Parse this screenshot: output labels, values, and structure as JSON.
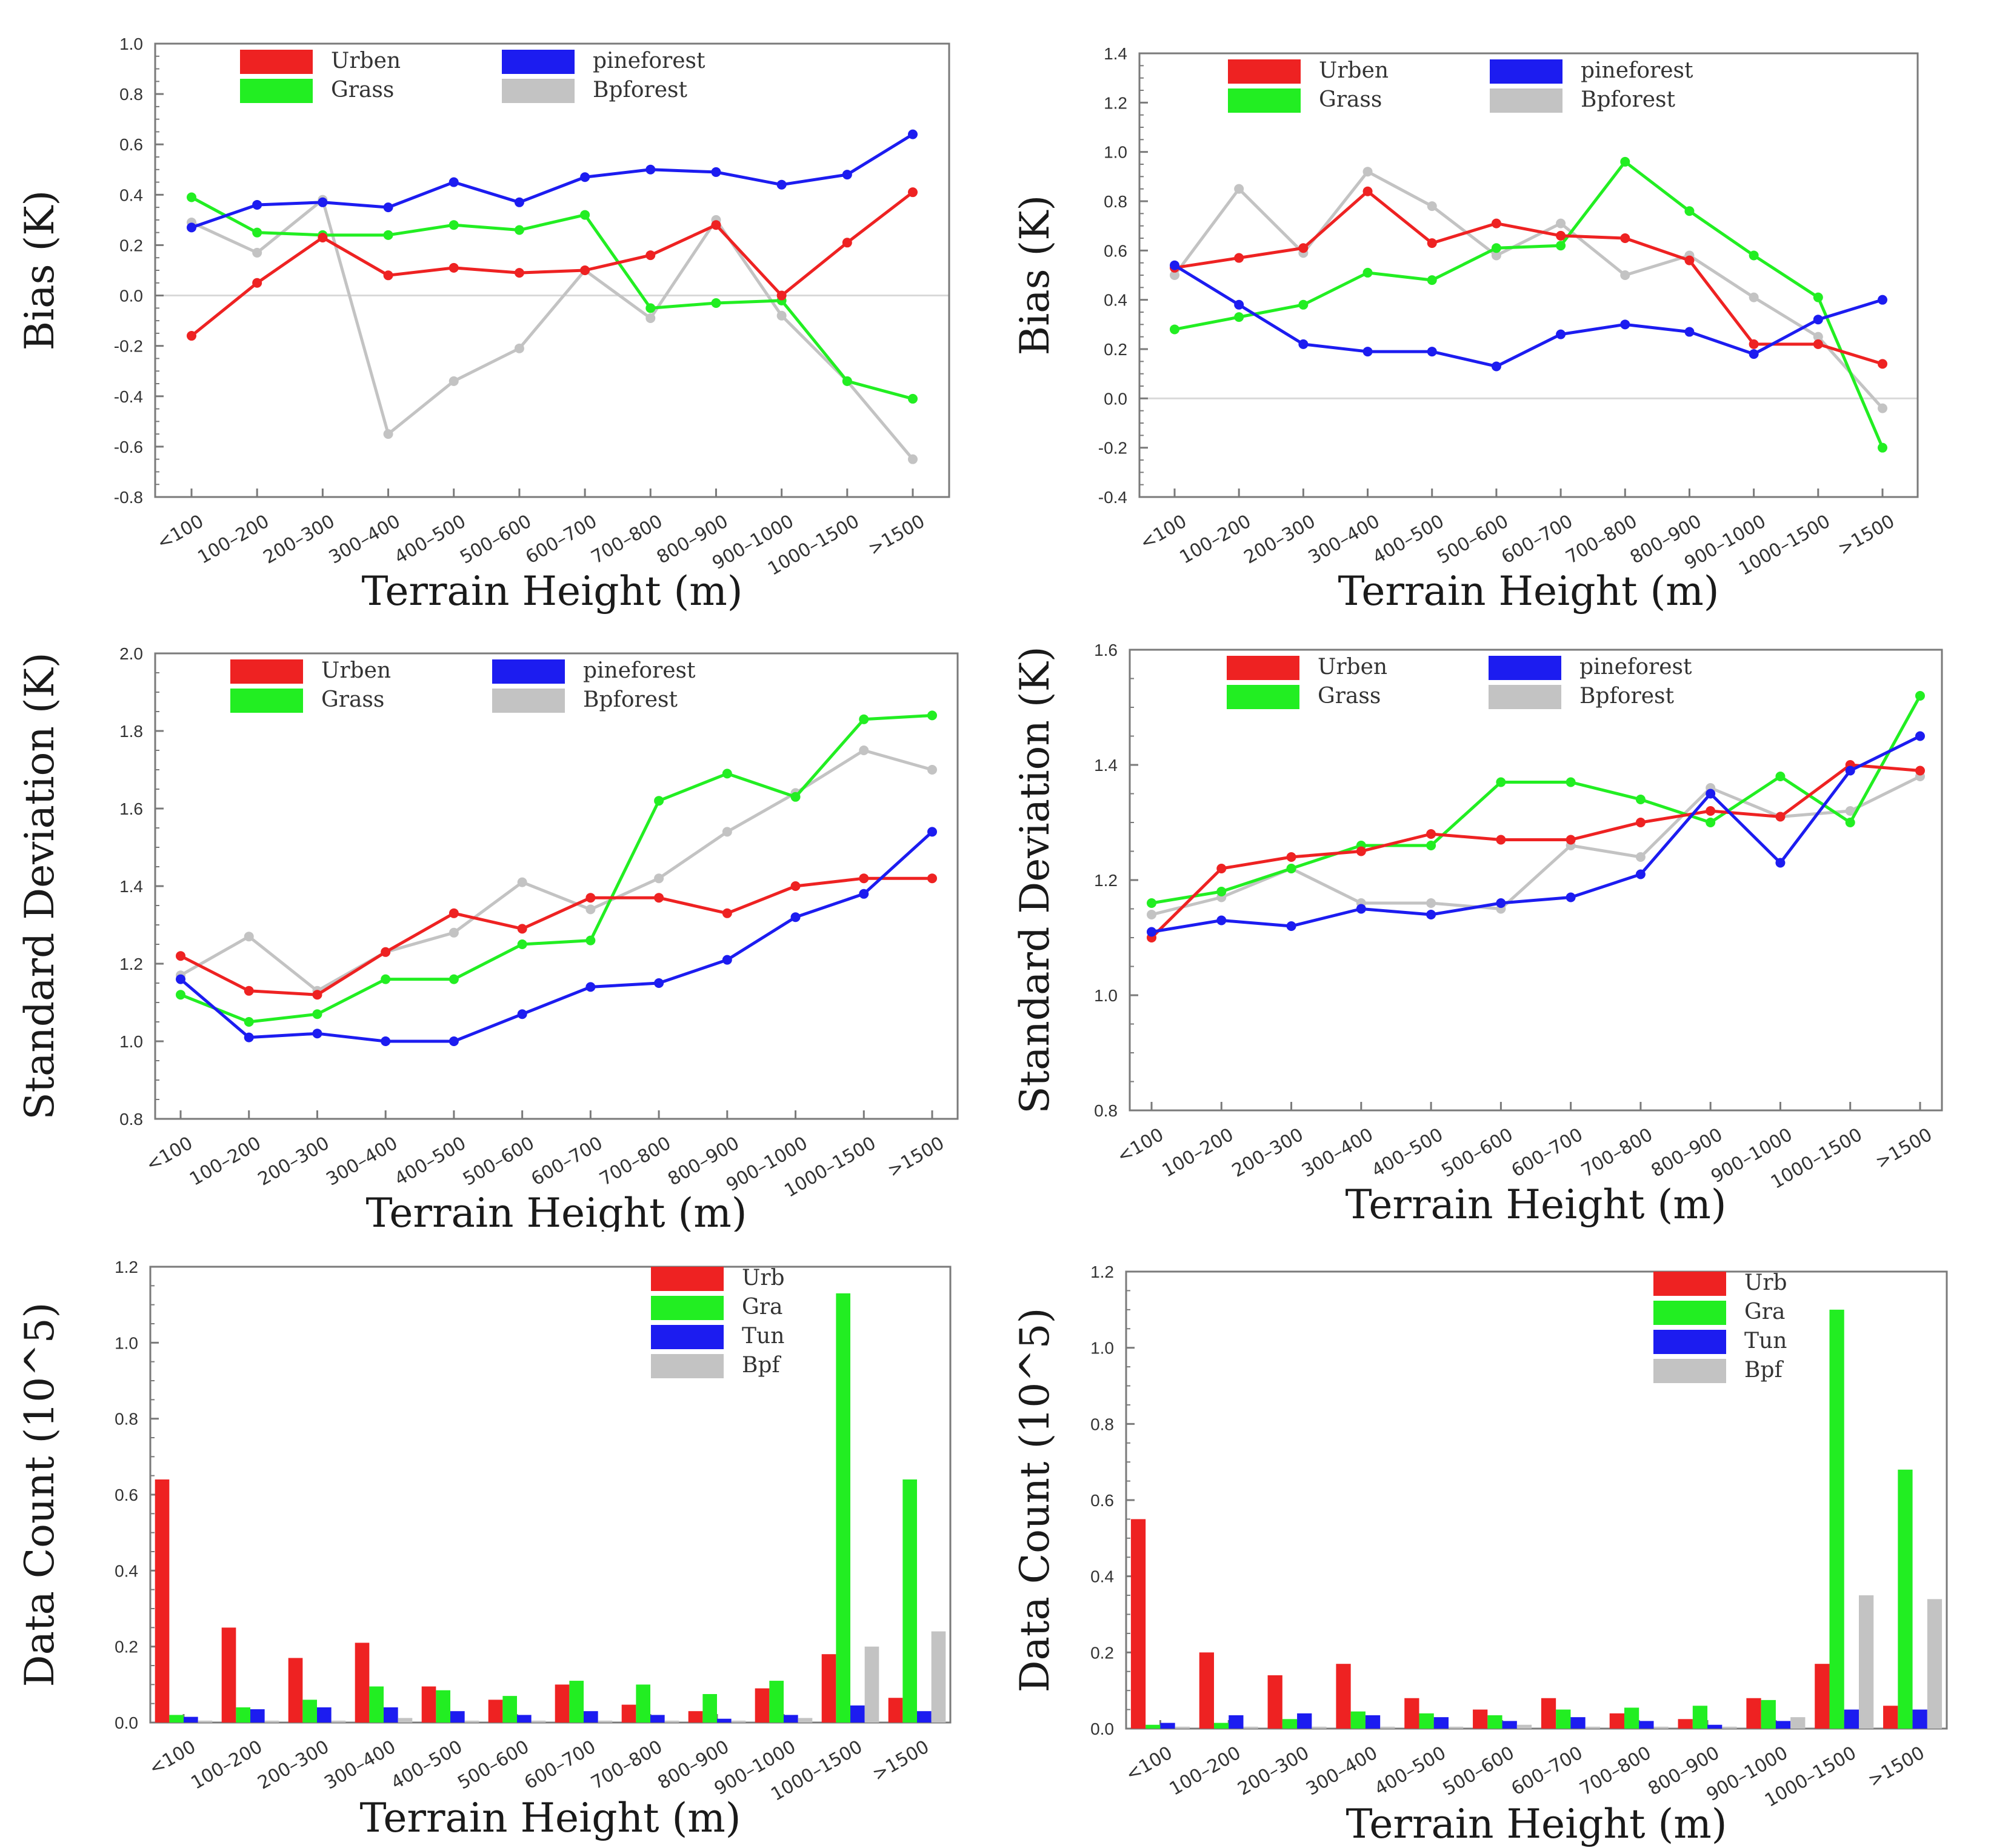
{
  "colors": {
    "red": "#ee2222",
    "green": "#22ee22",
    "blue": "#1c1cf0",
    "gray": "#c3c3c3",
    "frame": "#7a7a7a"
  },
  "chart_data": [
    {
      "id": "p1",
      "type": "line",
      "xlabel": "Terrain Height (m)",
      "ylabel": "Bias (K)",
      "ylim": [
        -0.8,
        1.0
      ],
      "yticks": [
        -0.8,
        -0.6,
        -0.4,
        -0.2,
        0.0,
        0.2,
        0.4,
        0.6,
        0.8,
        1.0
      ],
      "zeroline": true,
      "categories": [
        "<100",
        "100–200",
        "200–300",
        "300–400",
        "400–500",
        "500–600",
        "600–700",
        "700–800",
        "800–900",
        "900–1000",
        "1000–1500",
        ">1500"
      ],
      "legend": [
        [
          "Urben",
          "Grass"
        ],
        [
          "pineforest",
          "Bpforest"
        ]
      ],
      "series": [
        {
          "name": "Urben",
          "color": "red",
          "values": [
            -0.16,
            0.05,
            0.23,
            0.08,
            0.11,
            0.09,
            0.1,
            0.16,
            0.28,
            0.0,
            0.21,
            0.41
          ]
        },
        {
          "name": "Grass",
          "color": "green",
          "values": [
            0.39,
            0.25,
            0.24,
            0.24,
            0.28,
            0.26,
            0.32,
            -0.05,
            -0.03,
            -0.02,
            -0.34,
            -0.41
          ]
        },
        {
          "name": "pineforest",
          "color": "blue",
          "values": [
            0.27,
            0.36,
            0.37,
            0.35,
            0.45,
            0.37,
            0.47,
            0.5,
            0.49,
            0.44,
            0.48,
            0.64
          ]
        },
        {
          "name": "Bpforest",
          "color": "gray",
          "values": [
            0.29,
            0.17,
            0.38,
            -0.55,
            -0.34,
            -0.21,
            0.1,
            -0.09,
            0.3,
            -0.08,
            -0.34,
            -0.65
          ]
        }
      ]
    },
    {
      "id": "p2",
      "type": "line",
      "xlabel": "Terrain Height (m)",
      "ylabel": "Bias (K)",
      "ylim": [
        -0.4,
        1.4
      ],
      "yticks": [
        -0.4,
        -0.2,
        0.0,
        0.2,
        0.4,
        0.6,
        0.8,
        1.0,
        1.2,
        1.4
      ],
      "zeroline": true,
      "categories": [
        "<100",
        "100–200",
        "200–300",
        "300–400",
        "400–500",
        "500–600",
        "600–700",
        "700–800",
        "800–900",
        "900–1000",
        "1000–1500",
        ">1500"
      ],
      "legend": [
        [
          "Urben",
          "Grass"
        ],
        [
          "pineforest",
          "Bpforest"
        ]
      ],
      "series": [
        {
          "name": "Urben",
          "color": "red",
          "values": [
            0.53,
            0.57,
            0.61,
            0.84,
            0.63,
            0.71,
            0.66,
            0.65,
            0.56,
            0.22,
            0.22,
            0.14
          ]
        },
        {
          "name": "Grass",
          "color": "green",
          "values": [
            0.28,
            0.33,
            0.38,
            0.51,
            0.48,
            0.61,
            0.62,
            0.96,
            0.76,
            0.58,
            0.41,
            -0.2
          ]
        },
        {
          "name": "pineforest",
          "color": "blue",
          "values": [
            0.54,
            0.38,
            0.22,
            0.19,
            0.19,
            0.13,
            0.26,
            0.3,
            0.27,
            0.18,
            0.32,
            0.4
          ]
        },
        {
          "name": "Bpforest",
          "color": "gray",
          "values": [
            0.5,
            0.85,
            0.59,
            0.92,
            0.78,
            0.58,
            0.71,
            0.5,
            0.58,
            0.41,
            0.25,
            -0.04
          ]
        }
      ]
    },
    {
      "id": "p3",
      "type": "line",
      "xlabel": "Terrain Height (m)",
      "ylabel": "Standard Deviation (K)",
      "ylim": [
        0.8,
        2.0
      ],
      "yticks": [
        0.8,
        1.0,
        1.2,
        1.4,
        1.6,
        1.8,
        2.0
      ],
      "zeroline": false,
      "categories": [
        "<100",
        "100–200",
        "200–300",
        "300–400",
        "400–500",
        "500–600",
        "600–700",
        "700–800",
        "800–900",
        "900–1000",
        "1000–1500",
        ">1500"
      ],
      "legend": [
        [
          "Urben",
          "Grass"
        ],
        [
          "pineforest",
          "Bpforest"
        ]
      ],
      "series": [
        {
          "name": "Urben",
          "color": "red",
          "values": [
            1.22,
            1.13,
            1.12,
            1.23,
            1.33,
            1.29,
            1.37,
            1.37,
            1.33,
            1.4,
            1.42,
            1.42
          ]
        },
        {
          "name": "Grass",
          "color": "green",
          "values": [
            1.12,
            1.05,
            1.07,
            1.16,
            1.16,
            1.25,
            1.26,
            1.62,
            1.69,
            1.63,
            1.83,
            1.84
          ]
        },
        {
          "name": "pineforest",
          "color": "blue",
          "values": [
            1.16,
            1.01,
            1.02,
            1.0,
            1.0,
            1.07,
            1.14,
            1.15,
            1.21,
            1.32,
            1.38,
            1.54
          ]
        },
        {
          "name": "Bpforest",
          "color": "gray",
          "values": [
            1.17,
            1.27,
            1.13,
            1.23,
            1.28,
            1.41,
            1.34,
            1.42,
            1.54,
            1.64,
            1.75,
            1.7
          ]
        }
      ]
    },
    {
      "id": "p4",
      "type": "line",
      "xlabel": "Terrain Height (m)",
      "ylabel": "Standard Deviation (K)",
      "ylim": [
        0.8,
        1.6
      ],
      "yticks": [
        0.8,
        1.0,
        1.2,
        1.4,
        1.6
      ],
      "zeroline": false,
      "categories": [
        "<100",
        "100–200",
        "200–300",
        "300–400",
        "400–500",
        "500–600",
        "600–700",
        "700–800",
        "800–900",
        "900–1000",
        "1000–1500",
        ">1500"
      ],
      "legend": [
        [
          "Urben",
          "Grass"
        ],
        [
          "pineforest",
          "Bpforest"
        ]
      ],
      "series": [
        {
          "name": "Urben",
          "color": "red",
          "values": [
            1.1,
            1.22,
            1.24,
            1.25,
            1.28,
            1.27,
            1.27,
            1.3,
            1.32,
            1.31,
            1.4,
            1.39
          ]
        },
        {
          "name": "Grass",
          "color": "green",
          "values": [
            1.16,
            1.18,
            1.22,
            1.26,
            1.26,
            1.37,
            1.37,
            1.34,
            1.3,
            1.38,
            1.3,
            1.52
          ]
        },
        {
          "name": "pineforest",
          "color": "blue",
          "values": [
            1.11,
            1.13,
            1.12,
            1.15,
            1.14,
            1.16,
            1.17,
            1.21,
            1.35,
            1.23,
            1.39,
            1.45
          ]
        },
        {
          "name": "Bpforest",
          "color": "gray",
          "values": [
            1.14,
            1.17,
            1.22,
            1.16,
            1.16,
            1.15,
            1.26,
            1.24,
            1.36,
            1.31,
            1.32,
            1.38
          ]
        }
      ]
    },
    {
      "id": "p5",
      "type": "bar",
      "xlabel": "Terrain Height (m)",
      "ylabel": "Data Count (10^5)",
      "ylim": [
        0.0,
        1.2
      ],
      "yticks": [
        0.0,
        0.2,
        0.4,
        0.6,
        0.8,
        1.0,
        1.2
      ],
      "categories": [
        "<100",
        "100–200",
        "200–300",
        "300–400",
        "400–500",
        "500–600",
        "600–700",
        "700–800",
        "800–900",
        "900–1000",
        "1000–1500",
        ">1500"
      ],
      "legend": [
        [
          "Urb",
          "Gra",
          "Tun",
          "Bpf"
        ]
      ],
      "series": [
        {
          "name": "Urb",
          "color": "red",
          "values": [
            0.64,
            0.25,
            0.17,
            0.21,
            0.095,
            0.06,
            0.1,
            0.047,
            0.03,
            0.09,
            0.18,
            0.065
          ]
        },
        {
          "name": "Gra",
          "color": "green",
          "values": [
            0.02,
            0.04,
            0.06,
            0.095,
            0.085,
            0.07,
            0.11,
            0.1,
            0.075,
            0.11,
            1.13,
            0.64
          ]
        },
        {
          "name": "Tun",
          "color": "blue",
          "values": [
            0.015,
            0.035,
            0.04,
            0.04,
            0.03,
            0.02,
            0.03,
            0.02,
            0.01,
            0.02,
            0.045,
            0.03
          ]
        },
        {
          "name": "Bpf",
          "color": "gray",
          "values": [
            0.005,
            0.005,
            0.005,
            0.012,
            0.005,
            0.005,
            0.005,
            0.005,
            0.005,
            0.012,
            0.2,
            0.24
          ]
        }
      ]
    },
    {
      "id": "p6",
      "type": "bar",
      "xlabel": "Terrain Height (m)",
      "ylabel": "Data Count (10^5)",
      "ylim": [
        0.0,
        1.2
      ],
      "yticks": [
        0.0,
        0.2,
        0.4,
        0.6,
        0.8,
        1.0,
        1.2
      ],
      "categories": [
        "<100",
        "100–200",
        "200–300",
        "300–400",
        "400–500",
        "500–600",
        "600–700",
        "700–800",
        "800–900",
        "900–1000",
        "1000–1500",
        ">1500"
      ],
      "legend": [
        [
          "Urb",
          "Gra",
          "Tun",
          "Bpf"
        ]
      ],
      "series": [
        {
          "name": "Urb",
          "color": "red",
          "values": [
            0.55,
            0.2,
            0.14,
            0.17,
            0.08,
            0.05,
            0.08,
            0.04,
            0.025,
            0.08,
            0.17,
            0.06
          ]
        },
        {
          "name": "Gra",
          "color": "green",
          "values": [
            0.01,
            0.015,
            0.025,
            0.045,
            0.04,
            0.035,
            0.05,
            0.055,
            0.06,
            0.075,
            1.1,
            0.68
          ]
        },
        {
          "name": "Tun",
          "color": "blue",
          "values": [
            0.015,
            0.035,
            0.04,
            0.035,
            0.03,
            0.02,
            0.03,
            0.02,
            0.01,
            0.02,
            0.05,
            0.05
          ]
        },
        {
          "name": "Bpf",
          "color": "gray",
          "values": [
            0.005,
            0.005,
            0.005,
            0.005,
            0.005,
            0.01,
            0.005,
            0.005,
            0.005,
            0.03,
            0.35,
            0.34
          ]
        }
      ]
    }
  ]
}
